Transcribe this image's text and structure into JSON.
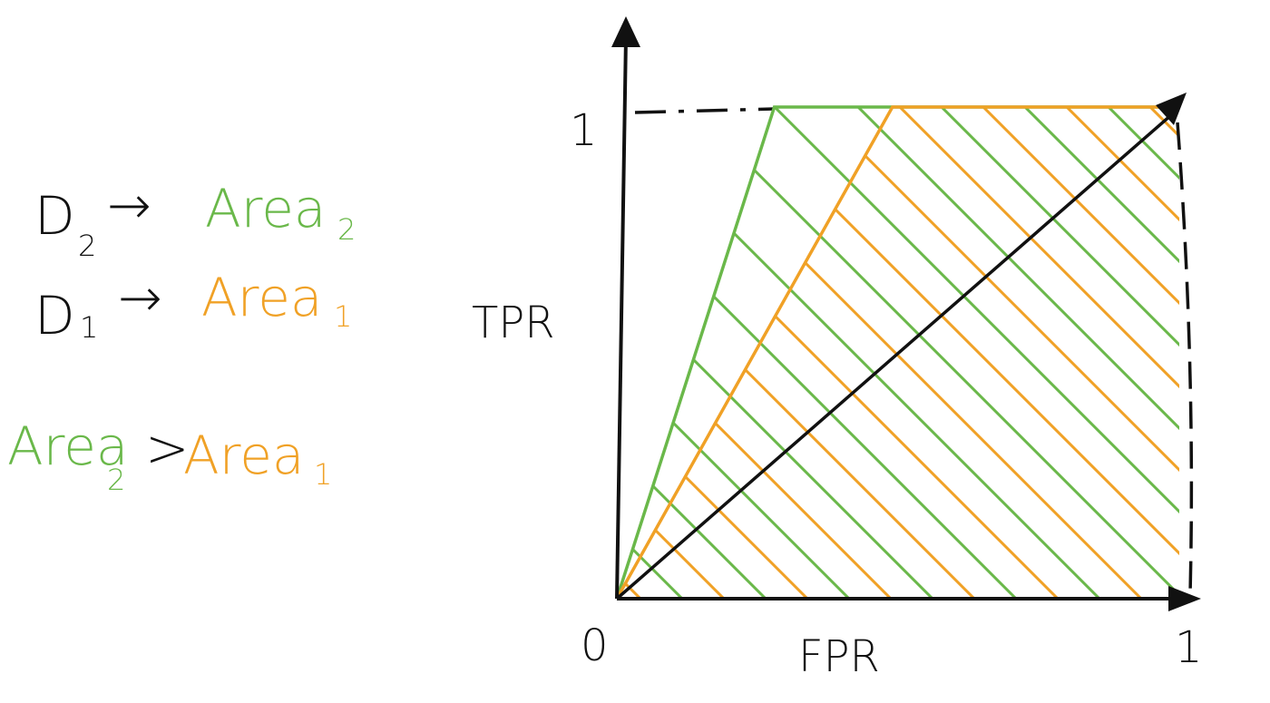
{
  "colors": {
    "d2_green": "#6ab84a",
    "d1_orange": "#f0a126",
    "axis_black": "#111111"
  },
  "legend": {
    "d2_row": {
      "label": "D",
      "sub": "2",
      "arrow": "→",
      "area": "Area",
      "area_sub": "2"
    },
    "d1_row": {
      "label": "D",
      "sub": "1",
      "arrow": "→",
      "area": "Area",
      "area_sub": "1"
    },
    "comparison": {
      "left": "Area",
      "left_sub": "2",
      "op": ">",
      "right": "Area",
      "right_sub": "1"
    }
  },
  "axes": {
    "y_label": "TPR",
    "x_label": "FPR",
    "origin": "0",
    "x_max": "1",
    "y_max": "1"
  },
  "chart_data": {
    "type": "line",
    "xlabel": "FPR",
    "ylabel": "TPR",
    "xlim": [
      0,
      1
    ],
    "ylim": [
      0,
      1
    ],
    "series": [
      {
        "name": "D2",
        "x": [
          0,
          0.28,
          1
        ],
        "y": [
          0,
          1,
          1
        ]
      },
      {
        "name": "D1",
        "x": [
          0,
          0.49,
          1
        ],
        "y": [
          0,
          1,
          1
        ]
      },
      {
        "x": [
          0,
          1
        ],
        "y": [
          0,
          1
        ]
      }
    ]
  }
}
